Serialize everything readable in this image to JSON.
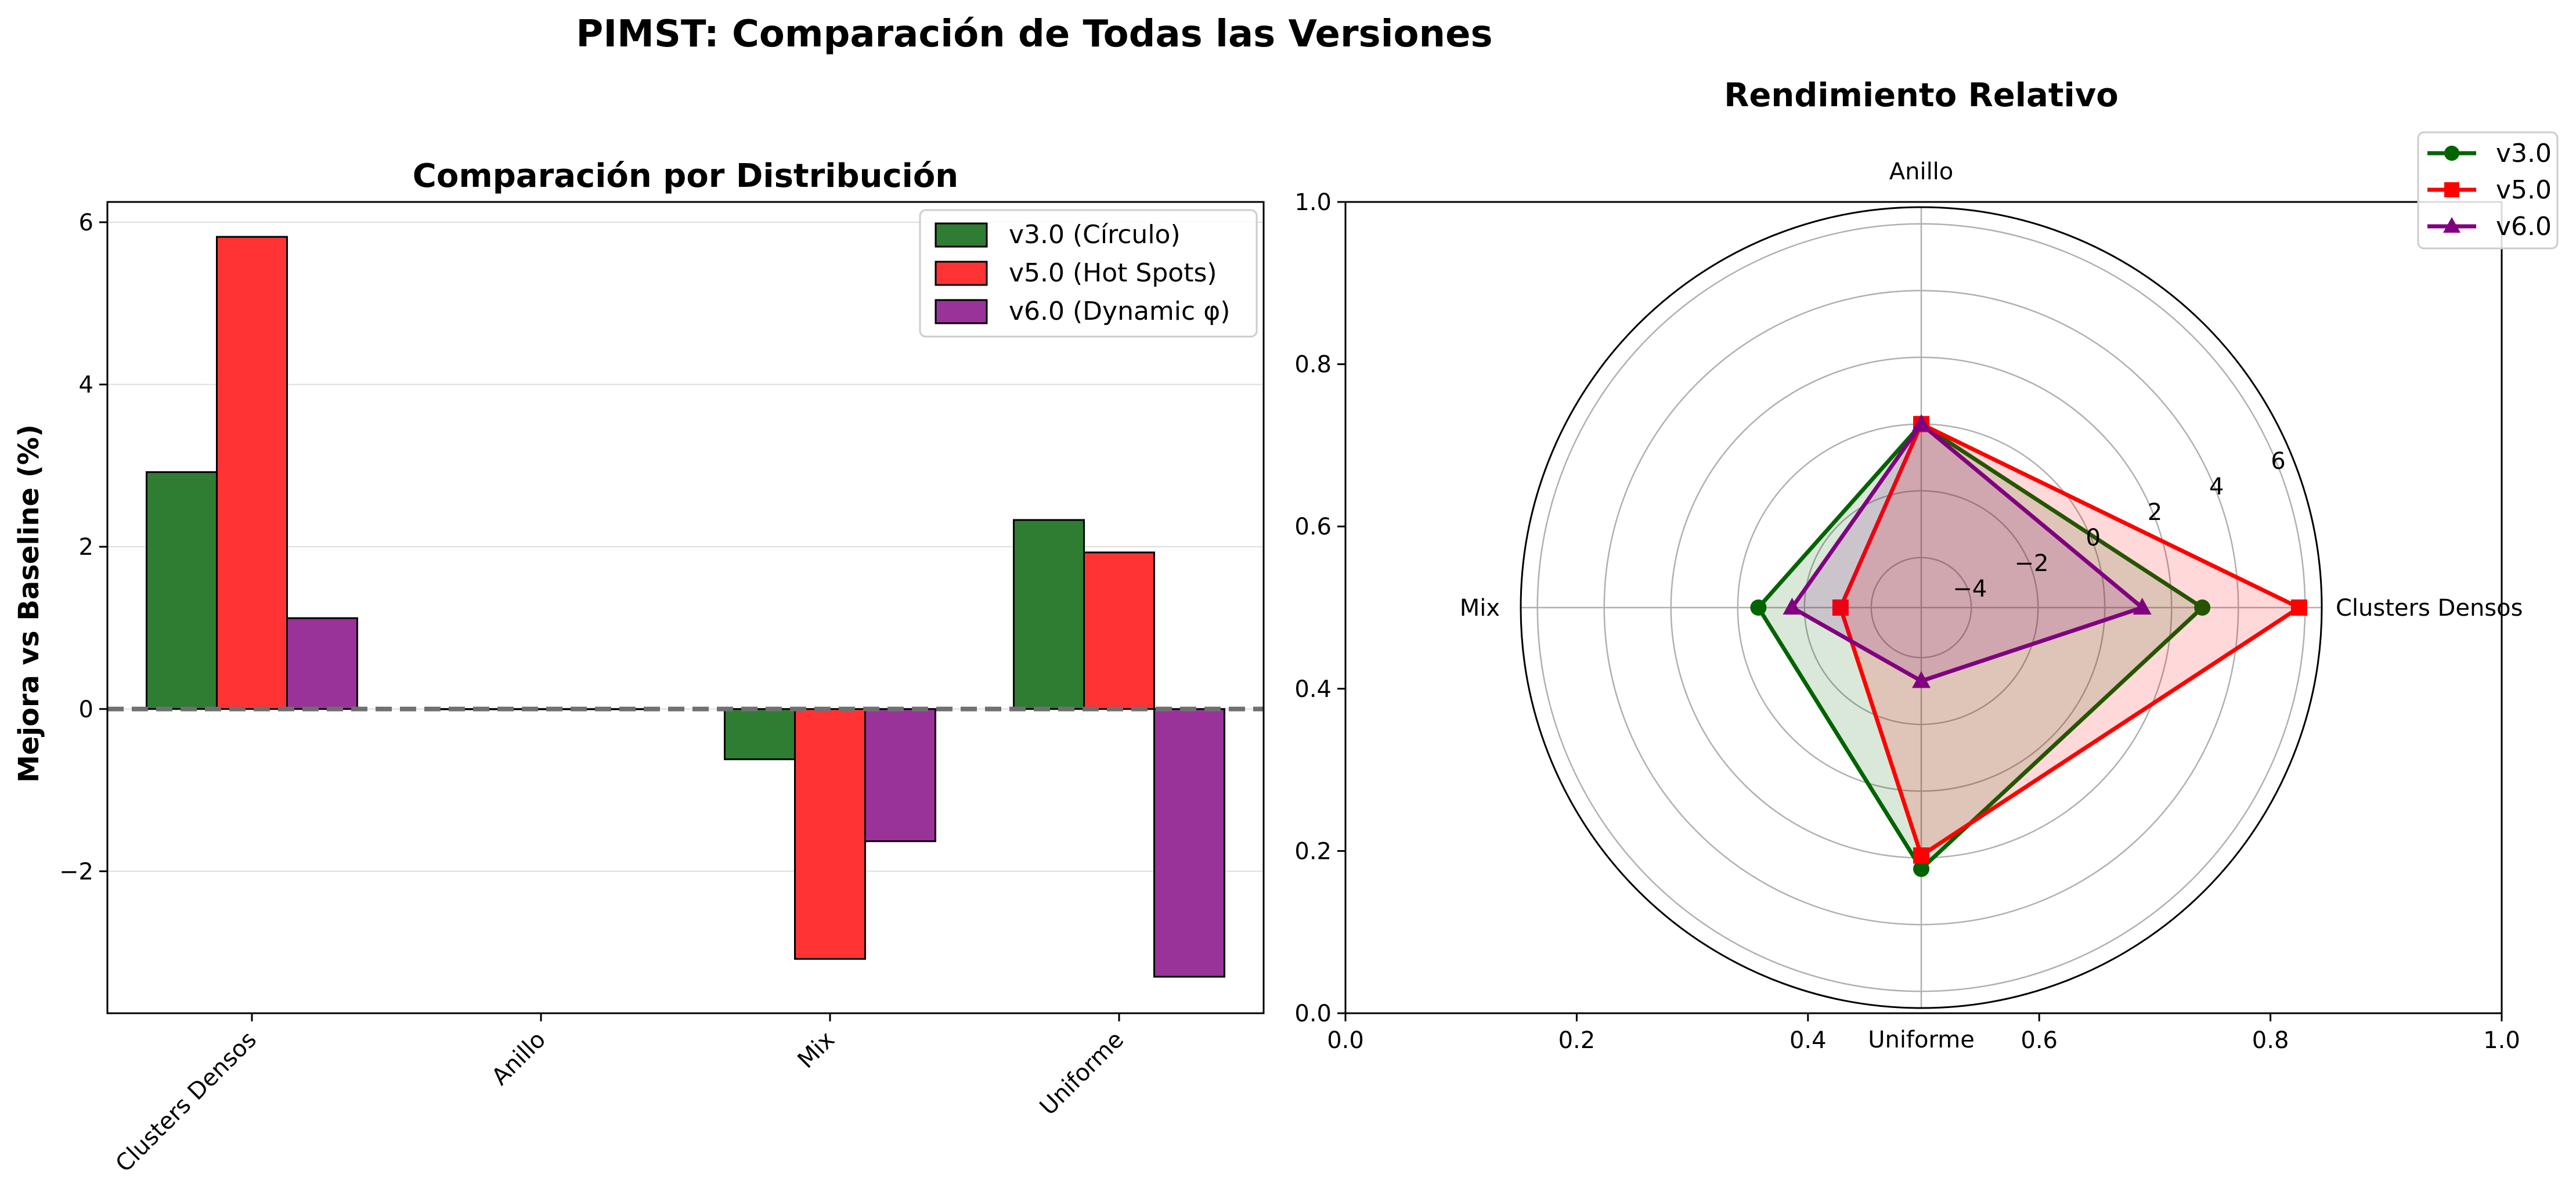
{
  "figure": {
    "title": "PIMST: Comparación de Todas las Versiones"
  },
  "bar_chart": {
    "title": "Comparación por Distribución",
    "ylabel": "Mejora vs Baseline (%)"
  },
  "radar_chart": {
    "title": "Rendimiento Relativo"
  },
  "colors": {
    "v3": "#2e7d32",
    "v5": "#ff3333",
    "v6": "#993399",
    "radar_v3": "#006400",
    "radar_v5": "#ff0000",
    "radar_v6": "#800080"
  },
  "chart_data": [
    {
      "type": "bar",
      "title": "Comparación por Distribución",
      "xlabel": "",
      "ylabel": "Mejora vs Baseline (%)",
      "categories": [
        "Clusters Densos",
        "Anillo",
        "Mix",
        "Uniforme"
      ],
      "series": [
        {
          "name": "v3.0 (Círculo)",
          "values": [
            2.92,
            0.0,
            -0.62,
            2.33
          ]
        },
        {
          "name": "v5.0 (Hot Spots)",
          "values": [
            5.82,
            0.0,
            -3.08,
            1.93
          ]
        },
        {
          "name": "v6.0 (Dynamic φ)",
          "values": [
            1.12,
            0.0,
            -1.63,
            -3.3
          ]
        }
      ],
      "ylim": [
        -3.75,
        6.25
      ],
      "yticks": [
        -2,
        0,
        2,
        4,
        6
      ],
      "ytick_labels": [
        "−2",
        "0",
        "2",
        "4",
        "6"
      ],
      "grid": "y",
      "legend": "upper right",
      "reference_line": 0
    },
    {
      "type": "radar",
      "title": "Rendimiento Relativo",
      "categories": [
        "Clusters Densos",
        "Anillo",
        "Mix",
        "Uniforme"
      ],
      "series": [
        {
          "name": "v3.0",
          "values": [
            2.92,
            0.0,
            -0.62,
            2.33
          ]
        },
        {
          "name": "v5.0",
          "values": [
            5.82,
            0.0,
            -3.08,
            1.93
          ]
        },
        {
          "name": "v6.0",
          "values": [
            1.12,
            0.0,
            -1.63,
            -3.3
          ]
        }
      ],
      "rlim": [
        -5.5,
        6.5
      ],
      "rticks": [
        -4,
        -2,
        0,
        2,
        4,
        6
      ],
      "rtick_labels": [
        "−4",
        "−2",
        "0",
        "2",
        "4",
        "6"
      ],
      "cartesian_xticks": [
        "0.0",
        "0.2",
        "0.4",
        "0.6",
        "0.8",
        "1.0"
      ],
      "cartesian_yticks": [
        "0.0",
        "0.2",
        "0.4",
        "0.6",
        "0.8",
        "1.0"
      ],
      "legend": "upper right"
    }
  ]
}
